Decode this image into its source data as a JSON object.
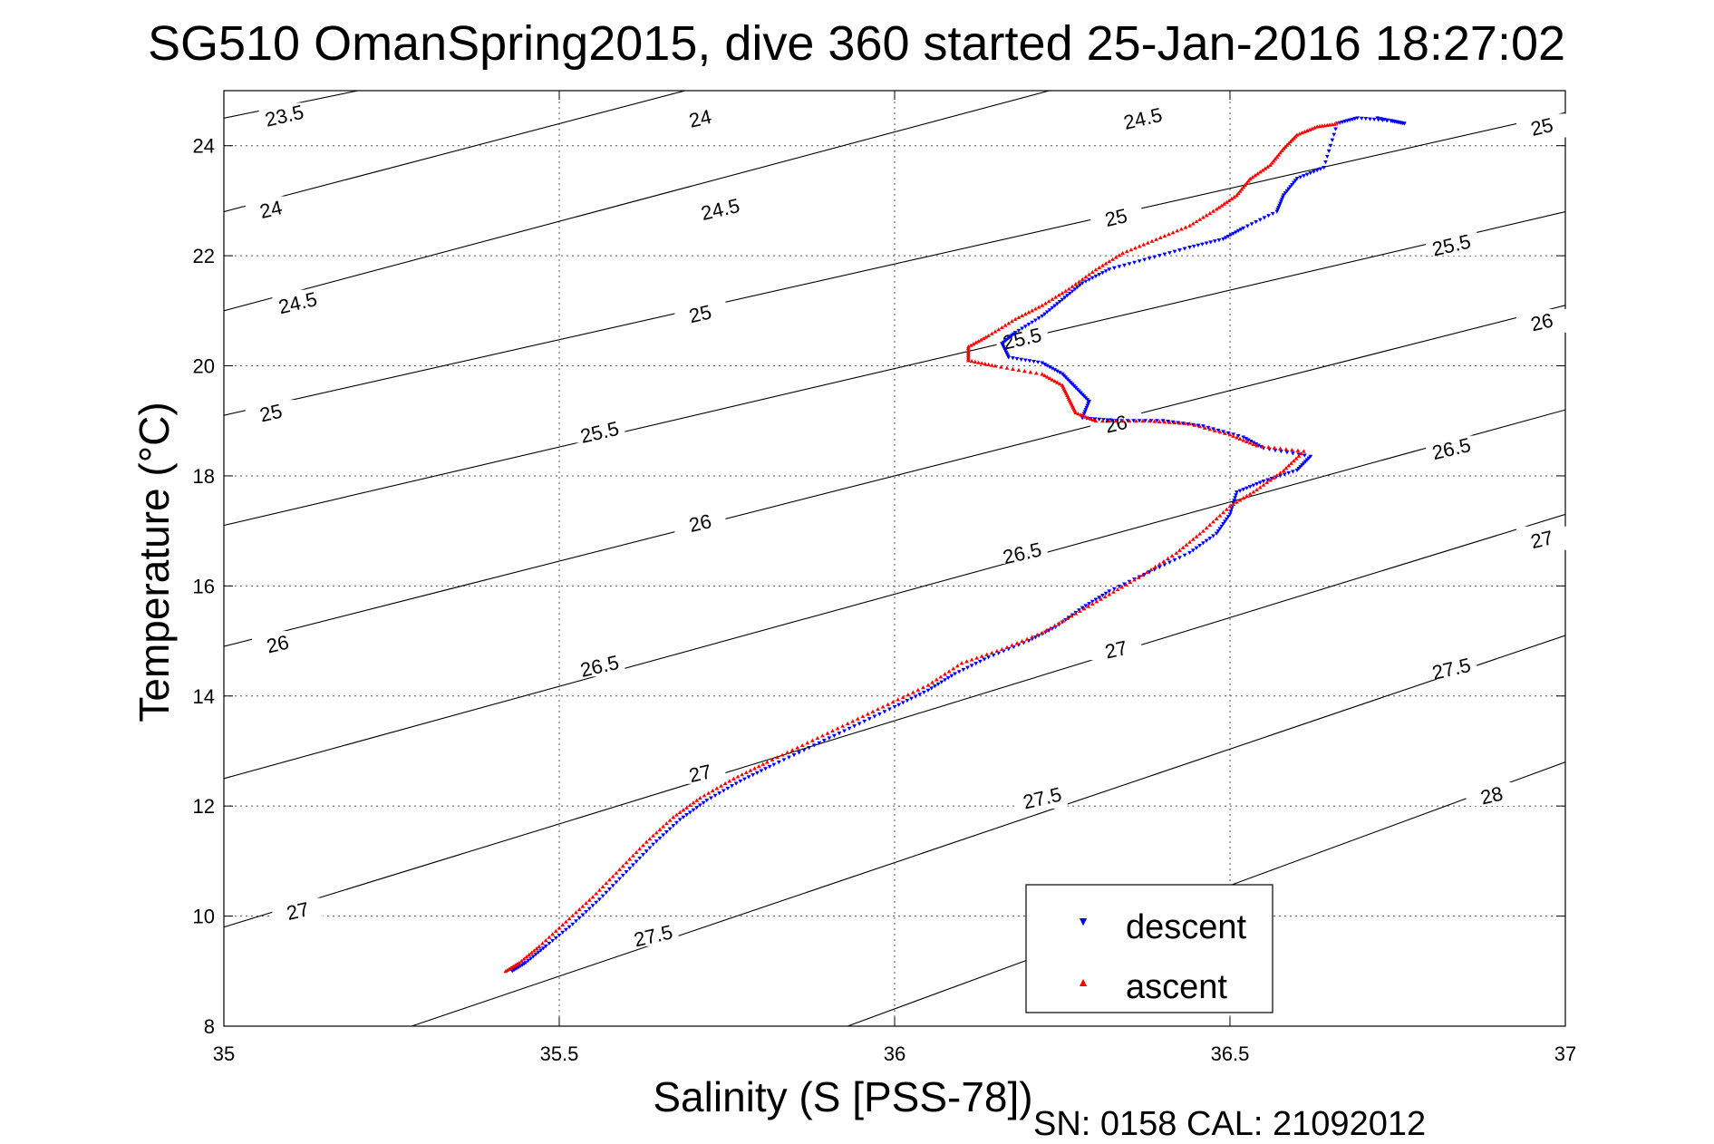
{
  "chart_data": {
    "type": "scatter",
    "title": "SG510 OmanSpring2015, dive 360 started 25-Jan-2016 18:27:02",
    "xlabel": "Salinity (S [PSS-78])",
    "ylabel": "Temperature (°C)",
    "xlim": [
      35,
      37
    ],
    "ylim": [
      8,
      25
    ],
    "xticks": [
      35,
      35.5,
      36,
      36.5,
      37
    ],
    "xtick_labels": [
      "35",
      "35.5",
      "36",
      "36.5",
      "37"
    ],
    "yticks": [
      8,
      10,
      12,
      14,
      16,
      18,
      20,
      22,
      24
    ],
    "ytick_labels": [
      "8",
      "10",
      "12",
      "14",
      "16",
      "18",
      "20",
      "22",
      "24"
    ],
    "grid": true,
    "legend_position": "bottom-right",
    "footer": "SN: 0158  CAL: 21092012",
    "isopycnal_lines": [
      {
        "label": "23.5",
        "points": [
          [
            35.0,
            24.5
          ],
          [
            35.2,
            25.0
          ]
        ]
      },
      {
        "label": "24",
        "points": [
          [
            35.0,
            22.8
          ],
          [
            36.0,
            26.0
          ]
        ]
      },
      {
        "label": "24.5",
        "points": [
          [
            35.0,
            21.0
          ],
          [
            37.0,
            27.5
          ]
        ]
      },
      {
        "label": "25",
        "points": [
          [
            35.0,
            19.1
          ],
          [
            37.0,
            24.6
          ]
        ]
      },
      {
        "label": "25.5",
        "points": [
          [
            35.0,
            17.1
          ],
          [
            37.0,
            22.8
          ]
        ]
      },
      {
        "label": "26",
        "points": [
          [
            35.0,
            14.9
          ],
          [
            37.0,
            21.1
          ]
        ]
      },
      {
        "label": "26.5",
        "points": [
          [
            35.0,
            12.5
          ],
          [
            37.0,
            19.2
          ]
        ]
      },
      {
        "label": "27",
        "points": [
          [
            35.0,
            9.8
          ],
          [
            37.0,
            17.3
          ]
        ]
      },
      {
        "label": "27.5",
        "points": [
          [
            35.28,
            8.0
          ],
          [
            37.0,
            15.1
          ]
        ]
      },
      {
        "label": "28",
        "points": [
          [
            35.93,
            8.0
          ],
          [
            37.0,
            12.8
          ]
        ]
      }
    ],
    "isopycnal_label_positions": [
      {
        "label": "23.5",
        "s": 35.09,
        "t": 24.55
      },
      {
        "label": "24",
        "s": 35.71,
        "t": 24.5
      },
      {
        "label": "24.5",
        "s": 36.37,
        "t": 24.5
      },
      {
        "label": "25",
        "s": 37.0,
        "t": 24.35
      },
      {
        "label": "24",
        "s": 35.07,
        "t": 22.85
      },
      {
        "label": "24.5",
        "s": 35.74,
        "t": 22.85
      },
      {
        "label": "25",
        "s": 36.33,
        "t": 22.7
      },
      {
        "label": "25.5",
        "s": 36.83,
        "t": 22.2
      },
      {
        "label": "24.5",
        "s": 35.11,
        "t": 21.15
      },
      {
        "label": "25",
        "s": 35.71,
        "t": 20.95
      },
      {
        "label": "25.5",
        "s": 36.19,
        "t": 20.5
      },
      {
        "label": "26",
        "s": 36.97,
        "t": 20.8
      },
      {
        "label": "25",
        "s": 35.07,
        "t": 19.15
      },
      {
        "label": "25.5",
        "s": 35.56,
        "t": 18.8
      },
      {
        "label": "26",
        "s": 36.33,
        "t": 18.95
      },
      {
        "label": "26.5",
        "s": 36.83,
        "t": 18.5
      },
      {
        "label": "26",
        "s": 35.71,
        "t": 17.15
      },
      {
        "label": "26.5",
        "s": 36.19,
        "t": 16.6
      },
      {
        "label": "27",
        "s": 36.97,
        "t": 16.85
      },
      {
        "label": "26",
        "s": 35.08,
        "t": 14.95
      },
      {
        "label": "26.5",
        "s": 35.56,
        "t": 14.55
      },
      {
        "label": "27",
        "s": 36.33,
        "t": 14.85
      },
      {
        "label": "27.5",
        "s": 36.83,
        "t": 14.5
      },
      {
        "label": "27",
        "s": 35.71,
        "t": 12.6
      },
      {
        "label": "27.5",
        "s": 36.22,
        "t": 12.15
      },
      {
        "label": "28",
        "s": 36.89,
        "t": 12.2
      },
      {
        "label": "27",
        "s": 35.11,
        "t": 10.1
      },
      {
        "label": "27.5",
        "s": 35.64,
        "t": 9.65
      }
    ],
    "series": [
      {
        "name": "descent",
        "color": "#0000ff",
        "marker": "triangle-down",
        "points": [
          [
            35.43,
            9.0
          ],
          [
            35.45,
            9.15
          ],
          [
            35.48,
            9.45
          ],
          [
            35.52,
            9.85
          ],
          [
            35.56,
            10.3
          ],
          [
            35.6,
            10.8
          ],
          [
            35.64,
            11.3
          ],
          [
            35.68,
            11.75
          ],
          [
            35.72,
            12.1
          ],
          [
            35.77,
            12.45
          ],
          [
            35.82,
            12.75
          ],
          [
            35.88,
            13.1
          ],
          [
            35.94,
            13.45
          ],
          [
            36.0,
            13.8
          ],
          [
            36.05,
            14.1
          ],
          [
            36.09,
            14.4
          ],
          [
            36.14,
            14.7
          ],
          [
            36.2,
            15.0
          ],
          [
            36.24,
            15.25
          ],
          [
            36.28,
            15.6
          ],
          [
            36.32,
            15.9
          ],
          [
            36.38,
            16.25
          ],
          [
            36.44,
            16.6
          ],
          [
            36.48,
            16.95
          ],
          [
            36.5,
            17.3
          ],
          [
            36.51,
            17.7
          ],
          [
            36.55,
            17.9
          ],
          [
            36.6,
            18.1
          ],
          [
            36.62,
            18.35
          ],
          [
            36.55,
            18.5
          ],
          [
            36.52,
            18.7
          ],
          [
            36.46,
            18.9
          ],
          [
            36.4,
            19.0
          ],
          [
            36.33,
            19.0
          ],
          [
            36.28,
            19.05
          ],
          [
            36.29,
            19.35
          ],
          [
            36.27,
            19.6
          ],
          [
            36.25,
            19.85
          ],
          [
            36.22,
            20.05
          ],
          [
            36.17,
            20.15
          ],
          [
            36.16,
            20.4
          ],
          [
            36.18,
            20.6
          ],
          [
            36.22,
            20.9
          ],
          [
            36.25,
            21.2
          ],
          [
            36.28,
            21.5
          ],
          [
            36.32,
            21.75
          ],
          [
            36.38,
            21.95
          ],
          [
            36.44,
            22.15
          ],
          [
            36.49,
            22.3
          ],
          [
            36.52,
            22.5
          ],
          [
            36.57,
            22.8
          ],
          [
            36.58,
            23.1
          ],
          [
            36.6,
            23.4
          ],
          [
            36.64,
            23.6
          ],
          [
            36.66,
            24.4
          ],
          [
            36.69,
            24.5
          ],
          [
            36.74,
            24.45
          ],
          [
            36.76,
            24.4
          ],
          [
            36.72,
            24.5
          ]
        ]
      },
      {
        "name": "ascent",
        "color": "#ff0000",
        "marker": "triangle-up",
        "points": [
          [
            35.42,
            9.0
          ],
          [
            35.44,
            9.15
          ],
          [
            35.47,
            9.45
          ],
          [
            35.51,
            9.9
          ],
          [
            35.55,
            10.35
          ],
          [
            35.59,
            10.85
          ],
          [
            35.63,
            11.35
          ],
          [
            35.67,
            11.8
          ],
          [
            35.71,
            12.15
          ],
          [
            35.76,
            12.5
          ],
          [
            35.81,
            12.8
          ],
          [
            35.87,
            13.15
          ],
          [
            35.93,
            13.5
          ],
          [
            35.99,
            13.85
          ],
          [
            36.05,
            14.2
          ],
          [
            36.1,
            14.6
          ],
          [
            36.16,
            14.85
          ],
          [
            36.22,
            15.15
          ],
          [
            36.27,
            15.5
          ],
          [
            36.32,
            15.85
          ],
          [
            36.37,
            16.2
          ],
          [
            36.42,
            16.6
          ],
          [
            36.46,
            17.0
          ],
          [
            36.5,
            17.45
          ],
          [
            36.54,
            17.75
          ],
          [
            36.58,
            18.1
          ],
          [
            36.61,
            18.45
          ],
          [
            36.54,
            18.55
          ],
          [
            36.5,
            18.75
          ],
          [
            36.44,
            18.95
          ],
          [
            36.38,
            19.0
          ],
          [
            36.3,
            19.0
          ],
          [
            36.27,
            19.15
          ],
          [
            36.26,
            19.4
          ],
          [
            36.25,
            19.65
          ],
          [
            36.22,
            19.85
          ],
          [
            36.15,
            20.0
          ],
          [
            36.11,
            20.1
          ],
          [
            36.11,
            20.35
          ],
          [
            36.14,
            20.55
          ],
          [
            36.18,
            20.85
          ],
          [
            36.22,
            21.1
          ],
          [
            36.26,
            21.4
          ],
          [
            36.3,
            21.75
          ],
          [
            36.34,
            22.05
          ],
          [
            36.39,
            22.3
          ],
          [
            36.44,
            22.55
          ],
          [
            36.48,
            22.85
          ],
          [
            36.51,
            23.1
          ],
          [
            36.53,
            23.4
          ],
          [
            36.56,
            23.65
          ],
          [
            36.58,
            23.95
          ],
          [
            36.6,
            24.2
          ],
          [
            36.63,
            24.35
          ],
          [
            36.66,
            24.4
          ]
        ]
      }
    ]
  }
}
